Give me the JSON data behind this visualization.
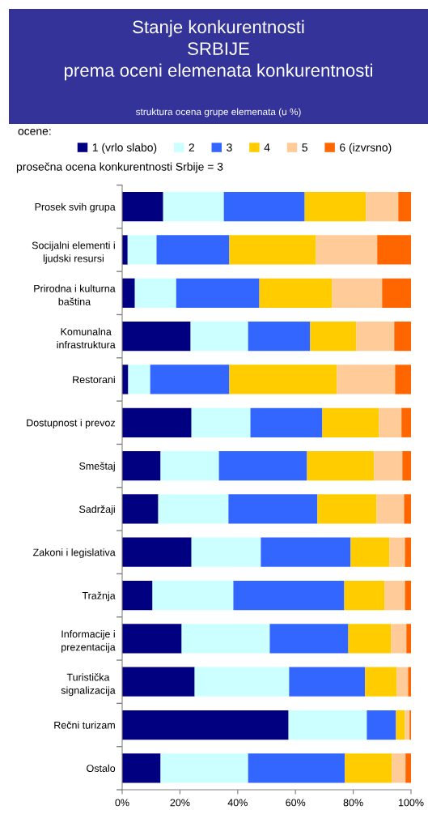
{
  "chart_data": {
    "type": "bar",
    "orientation": "horizontal",
    "stacked": true,
    "title": "Stanje konkurentnosti\nSRBIJE\nprema oceni elemenata konkurentnosti",
    "subtitle": "struktura ocena grupe elemenata (u %)",
    "legend_title": "ocene:",
    "annotations": [
      "prosečna ocena konkurentnosti Srbije = 3"
    ],
    "categories": [
      "Prosek svih grupa",
      "Socijalni elementi i\nljudski resursi",
      "Prirodna i kulturna\nbaština",
      "Komunalna\ninfrastruktura",
      "Restorani",
      "Dostupnost i prevoz",
      "Smeštaj",
      "Sadržaji",
      "Zakoni i legislativa",
      "Tražnja",
      "Informacije i\nprezentacija",
      "Turistička\nsignalizacija",
      "Rečni turizam",
      "Ostalo"
    ],
    "series": [
      {
        "name": "1 (vrlo slabo)",
        "color": "#000080",
        "values": [
          14.2,
          1.9,
          4.4,
          23.7,
          2.1,
          24.0,
          13.3,
          12.5,
          24.0,
          10.5,
          20.6,
          25.1,
          57.6,
          13.3
        ]
      },
      {
        "name": "2",
        "color": "#ccffff",
        "values": [
          21.0,
          10.0,
          14.3,
          19.9,
          7.6,
          20.4,
          20.2,
          24.3,
          24.0,
          28.0,
          30.5,
          32.7,
          27.1,
          30.3
        ]
      },
      {
        "name": "3",
        "color": "#3366ff",
        "values": [
          28.0,
          25.2,
          28.8,
          21.5,
          27.4,
          24.9,
          30.5,
          30.8,
          31.1,
          38.4,
          27.2,
          26.3,
          10.1,
          33.5
        ]
      },
      {
        "name": "4",
        "color": "#ffcc00",
        "values": [
          21.2,
          30.0,
          25.2,
          16.0,
          37.2,
          19.6,
          23.2,
          20.5,
          13.4,
          14.0,
          14.8,
          11.0,
          3.1,
          16.3
        ]
      },
      {
        "name": "5",
        "color": "#ffcc99",
        "values": [
          11.2,
          21.2,
          17.3,
          13.1,
          20.2,
          7.8,
          9.8,
          9.5,
          5.4,
          7.0,
          5.3,
          3.9,
          1.6,
          4.7
        ]
      },
      {
        "name": "6 (izvrsno)",
        "color": "#ff6600",
        "values": [
          4.4,
          11.7,
          10.0,
          5.8,
          5.5,
          3.3,
          3.0,
          2.4,
          2.1,
          2.1,
          1.6,
          1.0,
          0.5,
          1.9
        ]
      }
    ],
    "xlim": [
      0,
      100
    ],
    "xticks": [
      {
        "value": 0,
        "label": "0%"
      },
      {
        "value": 20,
        "label": "20%"
      },
      {
        "value": 40,
        "label": "40%"
      },
      {
        "value": 60,
        "label": "60%"
      },
      {
        "value": 80,
        "label": "80%"
      },
      {
        "value": 100,
        "label": "100%"
      }
    ],
    "legend": "top"
  }
}
